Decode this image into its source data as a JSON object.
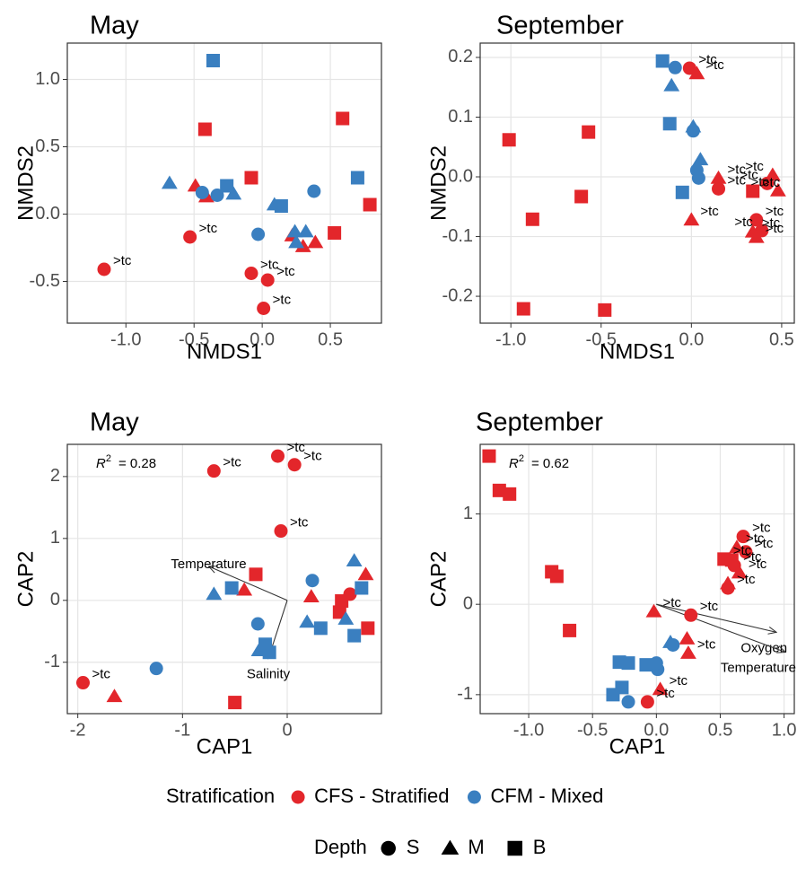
{
  "legend": {
    "stratification": {
      "title": "Stratification",
      "items": [
        {
          "name": "CFS - Stratified",
          "color": "#e3262b"
        },
        {
          "name": "CFM - Mixed",
          "color": "#3a7fc0"
        }
      ]
    },
    "depth": {
      "title": "Depth",
      "items": [
        {
          "name": "S",
          "shape": "circle"
        },
        {
          "name": "M",
          "shape": "triangle"
        },
        {
          "name": "B",
          "shape": "square"
        }
      ]
    }
  },
  "chart_data": [
    {
      "type": "scatter",
      "title": "May",
      "x_label": "NMDS1",
      "y_label": "NMDS2",
      "grid": true,
      "xlim": [
        -1.43,
        0.875
      ],
      "ylim": [
        -0.81,
        1.27
      ],
      "xticks": [
        {
          "value": -1,
          "label": "-1.0"
        },
        -0.5,
        {
          "value": 0,
          "label": "0.0"
        },
        0.5
      ],
      "yticks": [
        -0.5,
        {
          "value": 0,
          "label": "0.0"
        },
        0.5,
        {
          "value": 1,
          "label": "1.0"
        }
      ],
      "series": [
        {
          "color": "#e3262b",
          "shape": "circle",
          "x": [
            -0.53,
            -1.16,
            -0.08,
            0.04,
            0.01
          ],
          "values": [
            -0.17,
            -0.41,
            -0.44,
            -0.49,
            -0.7
          ],
          "labels": [
            ">tc",
            ">tc",
            ">tc",
            ">tc",
            ">tc"
          ]
        },
        {
          "color": "#e3262b",
          "shape": "triangle",
          "x": [
            -0.49,
            -0.41,
            0.22,
            0.3,
            0.39
          ],
          "values": [
            0.21,
            0.13,
            -0.16,
            -0.24,
            -0.21
          ]
        },
        {
          "color": "#e3262b",
          "shape": "square",
          "x": [
            -0.42,
            0.59,
            -0.08,
            0.79,
            0.53
          ],
          "values": [
            0.63,
            0.71,
            0.27,
            0.07,
            -0.14
          ]
        },
        {
          "color": "#3a7fc0",
          "shape": "circle",
          "x": [
            -0.44,
            -0.33,
            0.38,
            -0.03
          ],
          "values": [
            0.16,
            0.14,
            0.17,
            -0.15
          ]
        },
        {
          "color": "#3a7fc0",
          "shape": "triangle",
          "x": [
            -0.68,
            -0.21,
            0.09,
            0.24,
            0.32,
            0.25
          ],
          "values": [
            0.23,
            0.15,
            0.07,
            -0.13,
            -0.13,
            -0.21
          ]
        },
        {
          "color": "#3a7fc0",
          "shape": "square",
          "x": [
            -0.36,
            -0.26,
            0.14,
            0.7
          ],
          "values": [
            1.14,
            0.21,
            0.06,
            0.27
          ]
        }
      ]
    },
    {
      "type": "scatter",
      "title": "September",
      "x_label": "NMDS1",
      "y_label": "NMDS2",
      "grid": true,
      "xlim": [
        -1.17,
        0.57
      ],
      "ylim": [
        -0.245,
        0.224
      ],
      "xticks": [
        {
          "value": -1,
          "label": "-1.0"
        },
        -0.5,
        {
          "value": 0,
          "label": "0.0"
        },
        0.5
      ],
      "yticks": [
        -0.2,
        -0.1,
        {
          "value": 0,
          "label": "0.0"
        },
        0.1,
        0.2
      ],
      "series": [
        {
          "color": "#e3262b",
          "shape": "circle",
          "x": [
            -0.01,
            0.15,
            0.42,
            0.36,
            0.39
          ],
          "values": [
            0.182,
            -0.02,
            -0.011,
            -0.072,
            -0.09
          ],
          "labels": [
            ">tc",
            ">tc",
            ">tc",
            ">tc",
            ">tc"
          ]
        },
        {
          "color": "#e3262b",
          "shape": "triangle",
          "x": [
            0.03,
            0.0,
            0.15,
            0.45,
            0.48,
            0.34,
            0.36
          ],
          "values": [
            0.173,
            -0.072,
            -0.002,
            0.003,
            -0.023,
            -0.092,
            -0.101
          ],
          "labels": [
            ">tc",
            ">tc",
            ">tc",
            ">tc",
            ">tc",
            ">tc",
            ">tc"
          ]
        },
        {
          "color": "#e3262b",
          "shape": "square",
          "x": [
            -1.01,
            -0.57,
            -0.61,
            -0.88,
            -0.93,
            -0.48,
            0.34
          ],
          "values": [
            0.062,
            0.075,
            -0.033,
            -0.071,
            -0.221,
            -0.223,
            -0.024
          ],
          "labels": [
            null,
            null,
            null,
            null,
            null,
            null,
            ">tc"
          ]
        },
        {
          "color": "#3a7fc0",
          "shape": "circle",
          "x": [
            -0.09,
            0.01,
            0.03,
            0.04
          ],
          "values": [
            0.183,
            0.077,
            0.011,
            -0.002
          ]
        },
        {
          "color": "#3a7fc0",
          "shape": "triangle",
          "x": [
            -0.11,
            0.01,
            0.05
          ],
          "values": [
            0.153,
            0.084,
            0.029
          ]
        },
        {
          "color": "#3a7fc0",
          "shape": "square",
          "x": [
            -0.16,
            -0.12,
            -0.05
          ],
          "values": [
            0.194,
            0.089,
            -0.026
          ]
        }
      ]
    },
    {
      "type": "scatter",
      "title": "May",
      "x_label": "CAP1",
      "y_label": "CAP2",
      "grid": true,
      "annotation": {
        "symbol": "R",
        "superscript": "2",
        "text": "= 0.28"
      },
      "xlim": [
        -2.1,
        0.9
      ],
      "ylim": [
        -1.83,
        2.52
      ],
      "xticks": [
        -2,
        -1,
        0
      ],
      "yticks": [
        -1,
        0,
        1,
        2
      ],
      "vectors": [
        {
          "label": "Temperature",
          "x": -0.75,
          "y": 0.55
        },
        {
          "label": "Salinity",
          "x": -0.18,
          "y": -0.94
        }
      ],
      "series": [
        {
          "color": "#e3262b",
          "shape": "circle",
          "x": [
            -0.09,
            0.07,
            -0.7,
            -0.06,
            -1.95,
            0.6
          ],
          "values": [
            2.33,
            2.19,
            2.09,
            1.12,
            -1.33,
            0.1
          ],
          "labels": [
            ">tc",
            ">tc",
            ">tc",
            ">tc",
            ">tc",
            null
          ]
        },
        {
          "color": "#e3262b",
          "shape": "triangle",
          "x": [
            -0.41,
            -1.65,
            0.75,
            0.23
          ],
          "values": [
            0.17,
            -1.55,
            0.42,
            0.06
          ]
        },
        {
          "color": "#e3262b",
          "shape": "square",
          "x": [
            -0.3,
            -0.5,
            0.52,
            0.5,
            0.77
          ],
          "values": [
            0.42,
            -1.65,
            -0.01,
            -0.19,
            -0.45
          ]
        },
        {
          "color": "#3a7fc0",
          "shape": "circle",
          "x": [
            -0.28,
            0.24,
            -1.25
          ],
          "values": [
            -0.38,
            0.32,
            -1.1
          ]
        },
        {
          "color": "#3a7fc0",
          "shape": "triangle",
          "x": [
            -0.7,
            -0.27,
            0.64,
            0.19,
            0.56
          ],
          "values": [
            0.1,
            -0.81,
            0.64,
            -0.35,
            -0.3
          ]
        },
        {
          "color": "#3a7fc0",
          "shape": "square",
          "x": [
            -0.53,
            -0.21,
            -0.17,
            0.71,
            0.32,
            0.64
          ],
          "values": [
            0.2,
            -0.71,
            -0.84,
            0.2,
            -0.45,
            -0.57
          ]
        }
      ]
    },
    {
      "type": "scatter",
      "title": "September",
      "x_label": "CAP1",
      "y_label": "CAP2",
      "grid": true,
      "annotation": {
        "symbol": "R",
        "superscript": "2",
        "text": "= 0.62"
      },
      "xlim": [
        -1.38,
        1.08
      ],
      "ylim": [
        -1.21,
        1.77
      ],
      "xticks": [
        {
          "value": -1,
          "label": "-1.0"
        },
        -0.5,
        {
          "value": 0,
          "label": "0.0"
        },
        0.5,
        {
          "value": 1,
          "label": "1.0"
        }
      ],
      "yticks": [
        -1,
        0,
        1
      ],
      "vectors": [
        {
          "label": "Oxygen",
          "x": 0.94,
          "y": -0.31
        },
        {
          "label": "Temperature",
          "x": 1.01,
          "y": -0.53
        }
      ],
      "series": [
        {
          "color": "#e3262b",
          "shape": "circle",
          "x": [
            -0.07,
            0.27,
            0.68,
            0.7,
            0.61,
            0.56
          ],
          "values": [
            -1.08,
            -0.12,
            0.75,
            0.58,
            0.43,
            0.18
          ],
          "labels": [
            ">tc",
            ">tc",
            ">tc",
            ">tc",
            ">tc",
            ">tc"
          ]
        },
        {
          "color": "#e3262b",
          "shape": "triangle",
          "x": [
            0.03,
            0.25,
            0.24,
            -0.02,
            0.63,
            0.65,
            0.56
          ],
          "values": [
            -0.94,
            -0.54,
            -0.38,
            -0.08,
            0.63,
            0.35,
            0.23
          ],
          "labels": [
            ">tc",
            ">tc",
            null,
            ">tc",
            ">tc",
            ">tc",
            null
          ]
        },
        {
          "color": "#e3262b",
          "shape": "square",
          "x": [
            -1.31,
            -1.23,
            -1.15,
            -0.82,
            -0.78,
            -0.68,
            0.53,
            0.59
          ],
          "values": [
            1.64,
            1.26,
            1.22,
            0.36,
            0.31,
            -0.29,
            0.5,
            0.49
          ],
          "labels": [
            null,
            null,
            null,
            null,
            null,
            null,
            ">tc",
            null
          ]
        },
        {
          "color": "#3a7fc0",
          "shape": "circle",
          "x": [
            -0.22,
            0.01,
            0.0,
            0.13
          ],
          "values": [
            -1.08,
            -0.72,
            -0.65,
            -0.45
          ]
        },
        {
          "color": "#3a7fc0",
          "shape": "triangle",
          "x": [
            0.11
          ],
          "values": [
            -0.42
          ]
        },
        {
          "color": "#3a7fc0",
          "shape": "square",
          "x": [
            -0.29,
            -0.22,
            -0.27,
            -0.34,
            -0.08
          ],
          "values": [
            -0.64,
            -0.65,
            -0.92,
            -1.0,
            -0.67
          ]
        }
      ]
    }
  ]
}
